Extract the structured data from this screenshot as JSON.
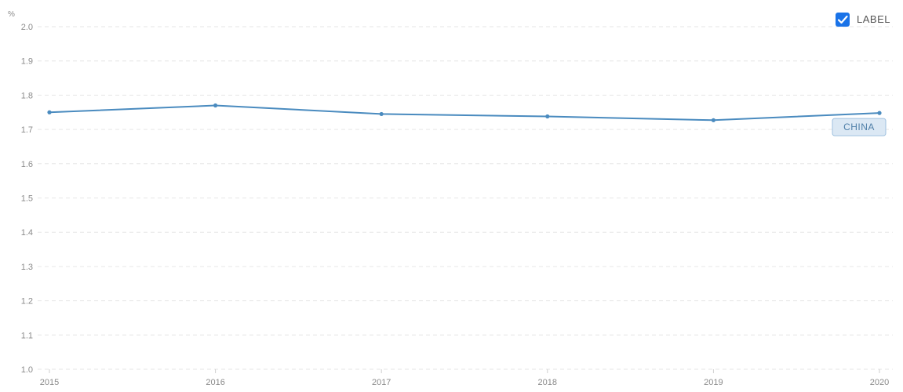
{
  "chart_data": {
    "type": "line",
    "ylabel": "%",
    "ylim": [
      1.0,
      2.0
    ],
    "y_ticks": [
      "2.0",
      "1.9",
      "1.8",
      "1.7",
      "1.6",
      "1.5",
      "1.4",
      "1.3",
      "1.2",
      "1.1",
      "1.0"
    ],
    "x": [
      "2015",
      "2016",
      "2017",
      "2018",
      "2019",
      "2020"
    ],
    "x_tick_labels": [
      "2015",
      "2016",
      "2017",
      "2018",
      "2019",
      "2020"
    ],
    "series": [
      {
        "name": "CHINA",
        "values": [
          1.75,
          1.77,
          1.745,
          1.738,
          1.727,
          1.748
        ],
        "color": "#4a8bbf"
      }
    ],
    "grid": true,
    "legend": {
      "label": "LABEL",
      "checked": true,
      "position": "top-right",
      "checkbox_color": "#1a73e8"
    }
  }
}
